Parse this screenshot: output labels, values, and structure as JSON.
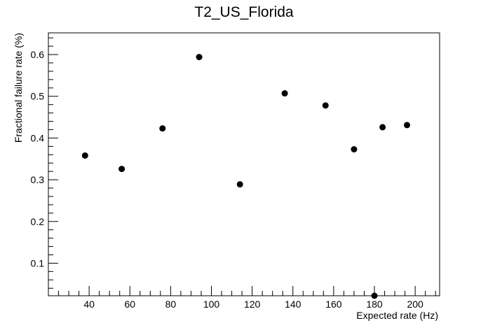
{
  "chart_data": {
    "type": "scatter",
    "title": "T2_US_Florida",
    "xlabel": "Expected rate (Hz)",
    "ylabel": "Fractional failure rate (%)",
    "xlim": [
      20,
      212
    ],
    "ylim": [
      0.022,
      0.652
    ],
    "xticks": [
      40,
      60,
      80,
      100,
      120,
      140,
      160,
      180,
      200
    ],
    "yticks": [
      0.1,
      0.2,
      0.3,
      0.4,
      0.5,
      0.6
    ],
    "xtick_labels": [
      "40",
      "60",
      "80",
      "100",
      "120",
      "140",
      "160",
      "180",
      "200"
    ],
    "ytick_labels": [
      "0.1",
      "0.2",
      "0.3",
      "0.4",
      "0.5",
      "0.6"
    ],
    "grid": false,
    "legend": "none",
    "marker_color": "#000000",
    "points": [
      {
        "x": 38,
        "y": 0.358
      },
      {
        "x": 56,
        "y": 0.326
      },
      {
        "x": 76,
        "y": 0.423
      },
      {
        "x": 94,
        "y": 0.594
      },
      {
        "x": 114,
        "y": 0.289
      },
      {
        "x": 136,
        "y": 0.507
      },
      {
        "x": 156,
        "y": 0.478
      },
      {
        "x": 170,
        "y": 0.373
      },
      {
        "x": 180,
        "y": 0.022
      },
      {
        "x": 184,
        "y": 0.426
      },
      {
        "x": 196,
        "y": 0.431
      }
    ]
  }
}
